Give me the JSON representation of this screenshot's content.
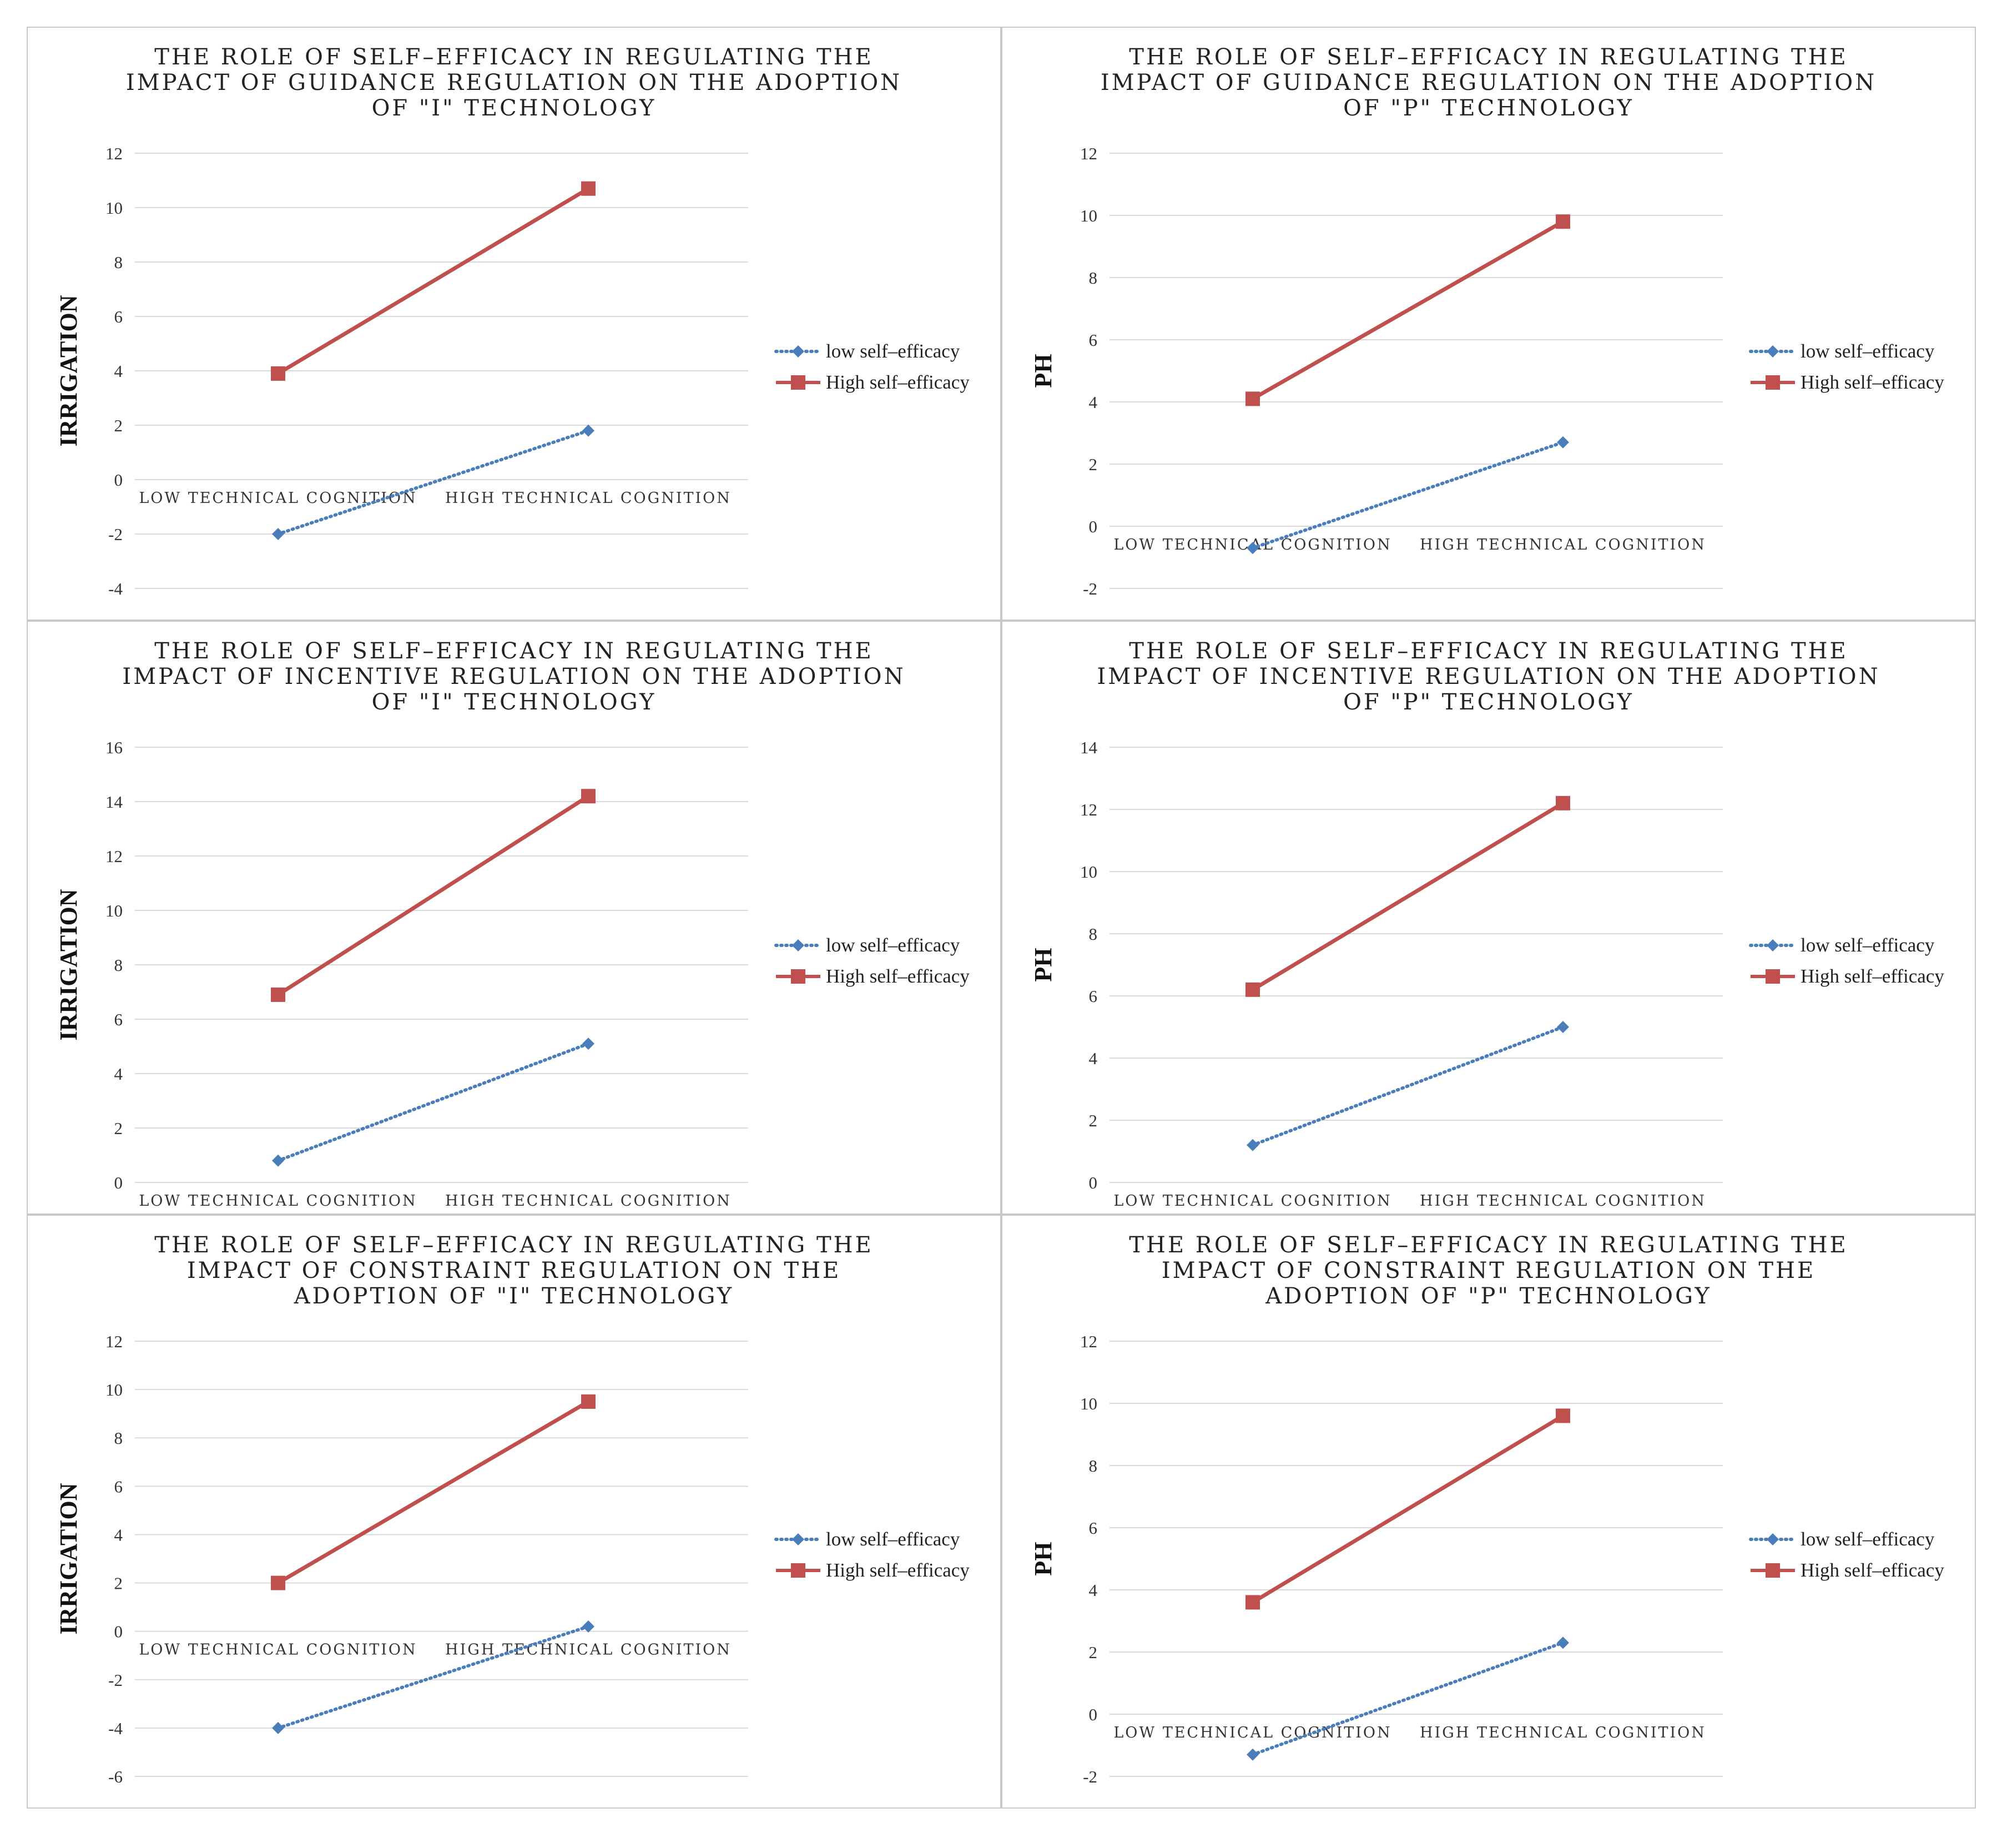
{
  "colors": {
    "low": "#4a7ebb",
    "high": "#c0504d",
    "grid": "#d9d9d9",
    "border": "#c8c8c8"
  },
  "chart_data": [
    {
      "type": "line",
      "title": [
        "THE ROLE OF SELF–EFFICACY IN REGULATING THE",
        "IMPACT OF GUIDANCE REGULATION ON THE ADOPTION",
        "OF \"I\" TECHNOLOGY"
      ],
      "ylabel": "IRRIGATION",
      "categories": [
        "LOW TECHNICAL COGNITION",
        "HIGH TECHNICAL COGNITION"
      ],
      "ylim": [
        -4,
        12
      ],
      "yticks": [
        -4,
        -2,
        0,
        2,
        4,
        6,
        8,
        10,
        12
      ],
      "legend": "right",
      "series": [
        {
          "name": "low self–efficacy",
          "values": [
            -2.0,
            1.8
          ],
          "style": "dotted"
        },
        {
          "name": "High self–efficacy",
          "values": [
            3.9,
            10.7
          ],
          "style": "solid"
        }
      ]
    },
    {
      "type": "line",
      "title": [
        "THE ROLE OF SELF–EFFICACY IN REGULATING THE",
        "IMPACT OF GUIDANCE REGULATION ON THE ADOPTION",
        "OF \"P\" TECHNOLOGY"
      ],
      "ylabel": "PH",
      "categories": [
        "LOW TECHNICAL COGNITION",
        "HIGH TECHNICAL COGNITION"
      ],
      "ylim": [
        -2,
        12
      ],
      "yticks": [
        -2,
        0,
        2,
        4,
        6,
        8,
        10,
        12
      ],
      "legend": "right",
      "series": [
        {
          "name": "low self–efficacy",
          "values": [
            -0.7,
            2.7
          ],
          "style": "dotted"
        },
        {
          "name": "High self–efficacy",
          "values": [
            4.1,
            9.8
          ],
          "style": "solid"
        }
      ]
    },
    {
      "type": "line",
      "title": [
        "THE ROLE OF SELF–EFFICACY IN REGULATING THE",
        "IMPACT OF INCENTIVE REGULATION ON THE ADOPTION",
        "OF \"I\" TECHNOLOGY"
      ],
      "ylabel": "IRRIGATION",
      "categories": [
        "LOW TECHNICAL COGNITION",
        "HIGH TECHNICAL COGNITION"
      ],
      "ylim": [
        0,
        16
      ],
      "yticks": [
        0,
        2,
        4,
        6,
        8,
        10,
        12,
        14,
        16
      ],
      "legend": "right",
      "series": [
        {
          "name": "low self–efficacy",
          "values": [
            0.8,
            5.1
          ],
          "style": "dotted"
        },
        {
          "name": "High self–efficacy",
          "values": [
            6.9,
            14.2
          ],
          "style": "solid"
        }
      ]
    },
    {
      "type": "line",
      "title": [
        "THE ROLE OF SELF–EFFICACY IN REGULATING THE",
        "IMPACT OF INCENTIVE REGULATION ON THE ADOPTION",
        "OF \"P\" TECHNOLOGY"
      ],
      "ylabel": "PH",
      "categories": [
        "LOW TECHNICAL COGNITION",
        "HIGH TECHNICAL COGNITION"
      ],
      "ylim": [
        0,
        14
      ],
      "yticks": [
        0,
        2,
        4,
        6,
        8,
        10,
        12,
        14
      ],
      "legend": "right",
      "series": [
        {
          "name": "low self–efficacy",
          "values": [
            1.2,
            5.0
          ],
          "style": "dotted"
        },
        {
          "name": "High self–efficacy",
          "values": [
            6.2,
            12.2
          ],
          "style": "solid"
        }
      ]
    },
    {
      "type": "line",
      "title": [
        "THE ROLE OF SELF–EFFICACY IN REGULATING THE",
        "IMPACT OF CONSTRAINT  REGULATION ON THE",
        "ADOPTION OF \"I\" TECHNOLOGY"
      ],
      "ylabel": "IRRIGATION",
      "categories": [
        "LOW TECHNICAL COGNITION",
        "HIGH TECHNICAL COGNITION"
      ],
      "ylim": [
        -6,
        12
      ],
      "yticks": [
        -6,
        -4,
        -2,
        0,
        2,
        4,
        6,
        8,
        10,
        12
      ],
      "legend": "right",
      "series": [
        {
          "name": "low self–efficacy",
          "values": [
            -4.0,
            0.2
          ],
          "style": "dotted"
        },
        {
          "name": "High self–efficacy",
          "values": [
            2.0,
            9.5
          ],
          "style": "solid"
        }
      ]
    },
    {
      "type": "line",
      "title": [
        "THE ROLE OF SELF–EFFICACY IN REGULATING THE",
        "IMPACT OF CONSTRAINT  REGULATION ON THE",
        "ADOPTION OF \"P\" TECHNOLOGY"
      ],
      "ylabel": "PH",
      "categories": [
        "LOW TECHNICAL COGNITION",
        "HIGH TECHNICAL COGNITION"
      ],
      "ylim": [
        -2,
        12
      ],
      "yticks": [
        -2,
        0,
        2,
        4,
        6,
        8,
        10,
        12
      ],
      "legend": "right",
      "series": [
        {
          "name": "low self–efficacy",
          "values": [
            -1.3,
            2.3
          ],
          "style": "dotted"
        },
        {
          "name": "High self–efficacy",
          "values": [
            3.6,
            9.6
          ],
          "style": "solid"
        }
      ]
    }
  ]
}
